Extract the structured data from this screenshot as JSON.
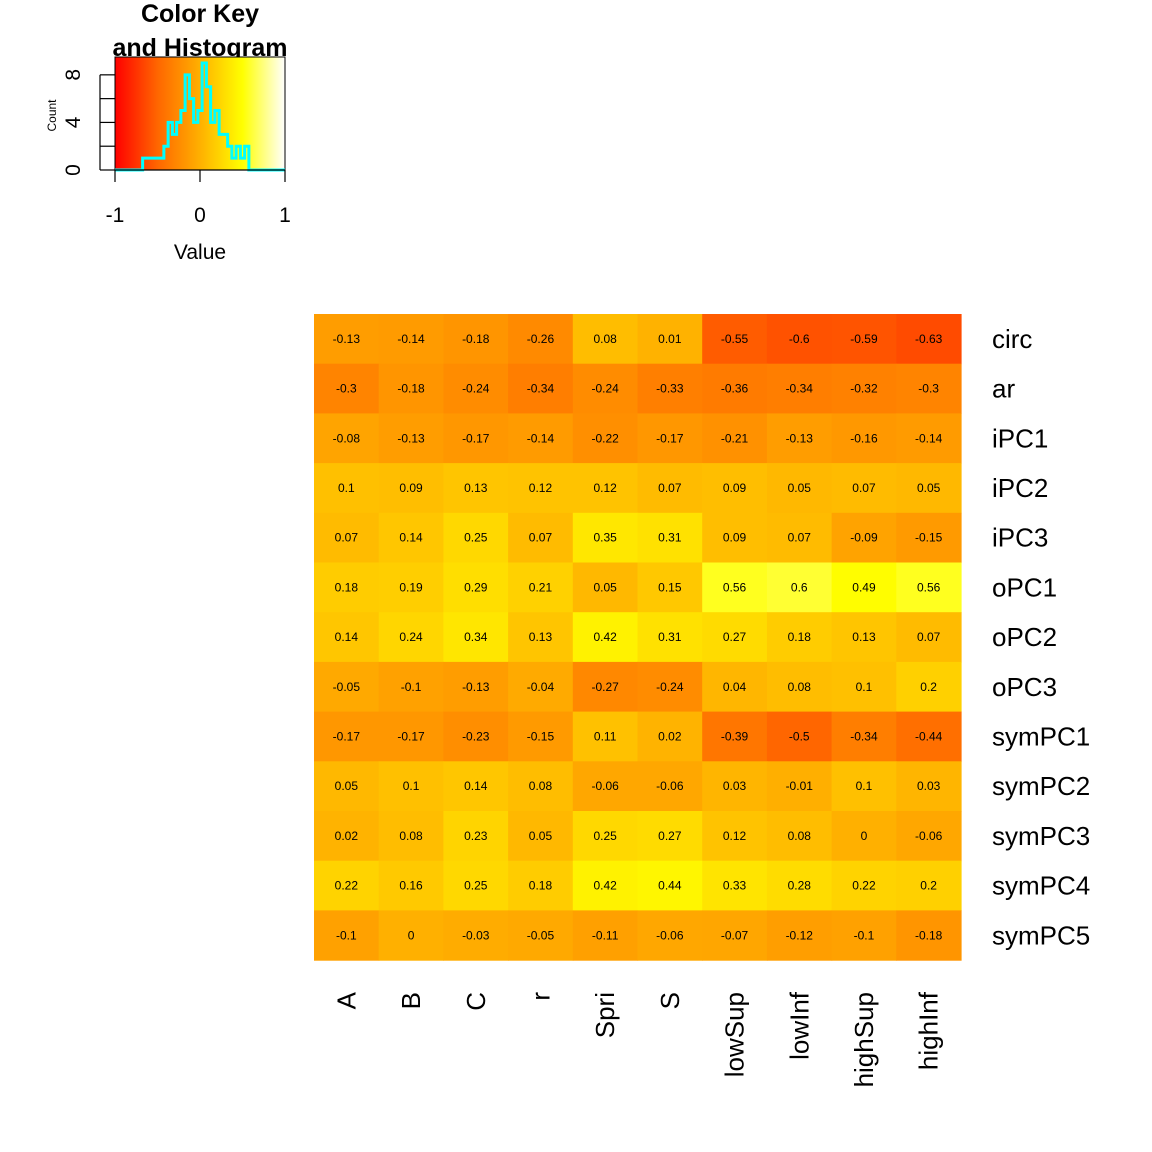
{
  "chart_data": {
    "type": "heatmap",
    "rows": [
      "circ",
      "ar",
      "iPC1",
      "iPC2",
      "iPC3",
      "oPC1",
      "oPC2",
      "oPC3",
      "symPC1",
      "symPC2",
      "symPC3",
      "symPC4",
      "symPC5"
    ],
    "columns": [
      "A",
      "B",
      "C",
      "r",
      "Spri",
      "S",
      "lowSup",
      "lowInf",
      "highSup",
      "highInf"
    ],
    "values": [
      [
        -0.13,
        -0.14,
        -0.18,
        -0.26,
        0.08,
        0.01,
        -0.55,
        -0.6,
        -0.59,
        -0.63
      ],
      [
        -0.3,
        -0.18,
        -0.24,
        -0.34,
        -0.24,
        -0.33,
        -0.36,
        -0.34,
        -0.32,
        -0.3
      ],
      [
        -0.08,
        -0.13,
        -0.17,
        -0.14,
        -0.22,
        -0.17,
        -0.21,
        -0.13,
        -0.16,
        -0.14
      ],
      [
        0.1,
        0.09,
        0.13,
        0.12,
        0.12,
        0.07,
        0.09,
        0.05,
        0.07,
        0.05
      ],
      [
        0.07,
        0.14,
        0.25,
        0.07,
        0.35,
        0.31,
        0.09,
        0.07,
        -0.09,
        -0.15
      ],
      [
        0.18,
        0.19,
        0.29,
        0.21,
        0.05,
        0.15,
        0.56,
        0.6,
        0.49,
        0.56
      ],
      [
        0.14,
        0.24,
        0.34,
        0.13,
        0.42,
        0.31,
        0.27,
        0.18,
        0.13,
        0.07
      ],
      [
        -0.05,
        -0.1,
        -0.13,
        -0.04,
        -0.27,
        -0.24,
        0.04,
        0.08,
        0.1,
        0.2
      ],
      [
        -0.17,
        -0.17,
        -0.23,
        -0.15,
        0.11,
        0.02,
        -0.39,
        -0.5,
        -0.34,
        -0.44
      ],
      [
        0.05,
        0.1,
        0.14,
        0.08,
        -0.06,
        -0.06,
        0.03,
        -0.01,
        0.1,
        0.03
      ],
      [
        0.02,
        0.08,
        0.23,
        0.05,
        0.25,
        0.27,
        0.12,
        0.08,
        0,
        -0.06
      ],
      [
        0.22,
        0.16,
        0.25,
        0.18,
        0.42,
        0.44,
        0.33,
        0.28,
        0.22,
        0.2
      ],
      [
        -0.1,
        0,
        -0.03,
        -0.05,
        -0.11,
        -0.06,
        -0.07,
        -0.12,
        -0.1,
        -0.18
      ]
    ],
    "color_scale": {
      "range": [
        -1,
        1
      ],
      "colors": [
        "#ff0000",
        "#ff6600",
        "#ffb000",
        "#ffff00",
        "#ffffff"
      ]
    },
    "color_key": {
      "title_lines": [
        "Color Key",
        "and Histogram"
      ],
      "xlabel": "Value",
      "ylabel": "Count",
      "x_ticks": [
        "-1",
        "0",
        "1"
      ],
      "y_ticks": [
        "0",
        "4",
        "8"
      ],
      "histogram_color": "#00ffff",
      "bins_width": 0.05,
      "counts": [
        {
          "x": -0.65,
          "count": 1
        },
        {
          "x": -0.6,
          "count": 1
        },
        {
          "x": -0.55,
          "count": 1
        },
        {
          "x": -0.5,
          "count": 1
        },
        {
          "x": -0.45,
          "count": 1
        },
        {
          "x": -0.4,
          "count": 2
        },
        {
          "x": -0.35,
          "count": 4
        },
        {
          "x": -0.3,
          "count": 3
        },
        {
          "x": -0.25,
          "count": 4
        },
        {
          "x": -0.2,
          "count": 5
        },
        {
          "x": -0.15,
          "count": 8
        },
        {
          "x": -0.1,
          "count": 6
        },
        {
          "x": -0.05,
          "count": 4
        },
        {
          "x": 0,
          "count": 5
        },
        {
          "x": 0.05,
          "count": 9
        },
        {
          "x": 0.1,
          "count": 7
        },
        {
          "x": 0.15,
          "count": 4
        },
        {
          "x": 0.2,
          "count": 5
        },
        {
          "x": 0.25,
          "count": 3
        },
        {
          "x": 0.3,
          "count": 3
        },
        {
          "x": 0.35,
          "count": 2
        },
        {
          "x": 0.4,
          "count": 1
        },
        {
          "x": 0.45,
          "count": 2
        },
        {
          "x": 0.5,
          "count": 1
        },
        {
          "x": 0.55,
          "count": 2
        }
      ]
    }
  }
}
